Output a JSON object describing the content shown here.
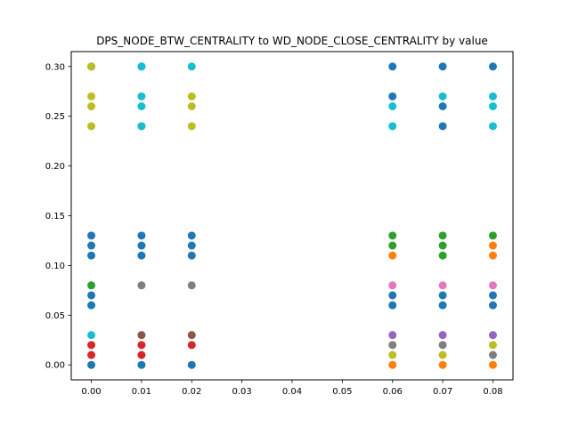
{
  "chart_data": {
    "type": "scatter",
    "title": "DPS_NODE_BTW_CENTRALITY to WD_NODE_CLOSE_CENTRALITY by value",
    "xlabel": "",
    "ylabel": "",
    "xlim": [
      -0.004,
      0.084
    ],
    "ylim": [
      -0.015,
      0.315
    ],
    "xticks": [
      "0.00",
      "0.01",
      "0.02",
      "0.03",
      "0.04",
      "0.05",
      "0.06",
      "0.07",
      "0.08"
    ],
    "yticks": [
      "0.00",
      "0.05",
      "0.10",
      "0.15",
      "0.20",
      "0.25",
      "0.30"
    ],
    "grid": false,
    "legend": "none",
    "series": [
      {
        "color": "#1f77b4",
        "points": [
          [
            0.0,
            0.0
          ],
          [
            0.0,
            0.06
          ],
          [
            0.0,
            0.07
          ],
          [
            0.0,
            0.11
          ],
          [
            0.0,
            0.12
          ],
          [
            0.0,
            0.13
          ],
          [
            0.0,
            0.3
          ],
          [
            0.01,
            0.0
          ],
          [
            0.01,
            0.11
          ],
          [
            0.01,
            0.12
          ],
          [
            0.01,
            0.13
          ],
          [
            0.01,
            0.3
          ],
          [
            0.02,
            0.0
          ],
          [
            0.02,
            0.11
          ],
          [
            0.02,
            0.12
          ],
          [
            0.02,
            0.13
          ],
          [
            0.06,
            0.06
          ],
          [
            0.06,
            0.07
          ],
          [
            0.06,
            0.27
          ],
          [
            0.06,
            0.3
          ],
          [
            0.07,
            0.06
          ],
          [
            0.07,
            0.07
          ],
          [
            0.07,
            0.24
          ],
          [
            0.07,
            0.26
          ],
          [
            0.07,
            0.3
          ],
          [
            0.08,
            0.06
          ],
          [
            0.08,
            0.07
          ],
          [
            0.08,
            0.3
          ]
        ]
      },
      {
        "color": "#ff7f0e",
        "points": [
          [
            0.06,
            0.0
          ],
          [
            0.06,
            0.11
          ],
          [
            0.07,
            0.0
          ],
          [
            0.08,
            0.0
          ],
          [
            0.08,
            0.11
          ],
          [
            0.08,
            0.12
          ]
        ]
      },
      {
        "color": "#2ca02c",
        "points": [
          [
            0.0,
            0.08
          ],
          [
            0.06,
            0.12
          ],
          [
            0.06,
            0.13
          ],
          [
            0.07,
            0.11
          ],
          [
            0.07,
            0.12
          ],
          [
            0.07,
            0.13
          ],
          [
            0.08,
            0.13
          ]
        ]
      },
      {
        "color": "#d62728",
        "points": [
          [
            0.0,
            0.01
          ],
          [
            0.0,
            0.02
          ],
          [
            0.01,
            0.01
          ],
          [
            0.01,
            0.02
          ],
          [
            0.02,
            0.02
          ]
        ]
      },
      {
        "color": "#9467bd",
        "points": [
          [
            0.06,
            0.03
          ],
          [
            0.07,
            0.03
          ],
          [
            0.08,
            0.03
          ]
        ]
      },
      {
        "color": "#8c564b",
        "points": [
          [
            0.01,
            0.03
          ],
          [
            0.02,
            0.03
          ]
        ]
      },
      {
        "color": "#e377c2",
        "points": [
          [
            0.06,
            0.08
          ],
          [
            0.07,
            0.08
          ],
          [
            0.08,
            0.08
          ]
        ]
      },
      {
        "color": "#7f7f7f",
        "points": [
          [
            0.01,
            0.08
          ],
          [
            0.02,
            0.08
          ],
          [
            0.06,
            0.02
          ],
          [
            0.07,
            0.02
          ],
          [
            0.08,
            0.01
          ]
        ]
      },
      {
        "color": "#bcbd22",
        "points": [
          [
            0.0,
            0.24
          ],
          [
            0.0,
            0.26
          ],
          [
            0.0,
            0.27
          ],
          [
            0.0,
            0.3
          ],
          [
            0.01,
            0.24
          ],
          [
            0.02,
            0.24
          ],
          [
            0.02,
            0.26
          ],
          [
            0.02,
            0.27
          ],
          [
            0.06,
            0.01
          ],
          [
            0.07,
            0.01
          ],
          [
            0.08,
            0.02
          ]
        ]
      },
      {
        "color": "#17becf",
        "points": [
          [
            0.0,
            0.03
          ],
          [
            0.01,
            0.24
          ],
          [
            0.01,
            0.26
          ],
          [
            0.01,
            0.27
          ],
          [
            0.01,
            0.3
          ],
          [
            0.02,
            0.3
          ],
          [
            0.06,
            0.24
          ],
          [
            0.06,
            0.26
          ],
          [
            0.07,
            0.27
          ],
          [
            0.08,
            0.24
          ],
          [
            0.08,
            0.26
          ],
          [
            0.08,
            0.27
          ]
        ]
      }
    ]
  }
}
